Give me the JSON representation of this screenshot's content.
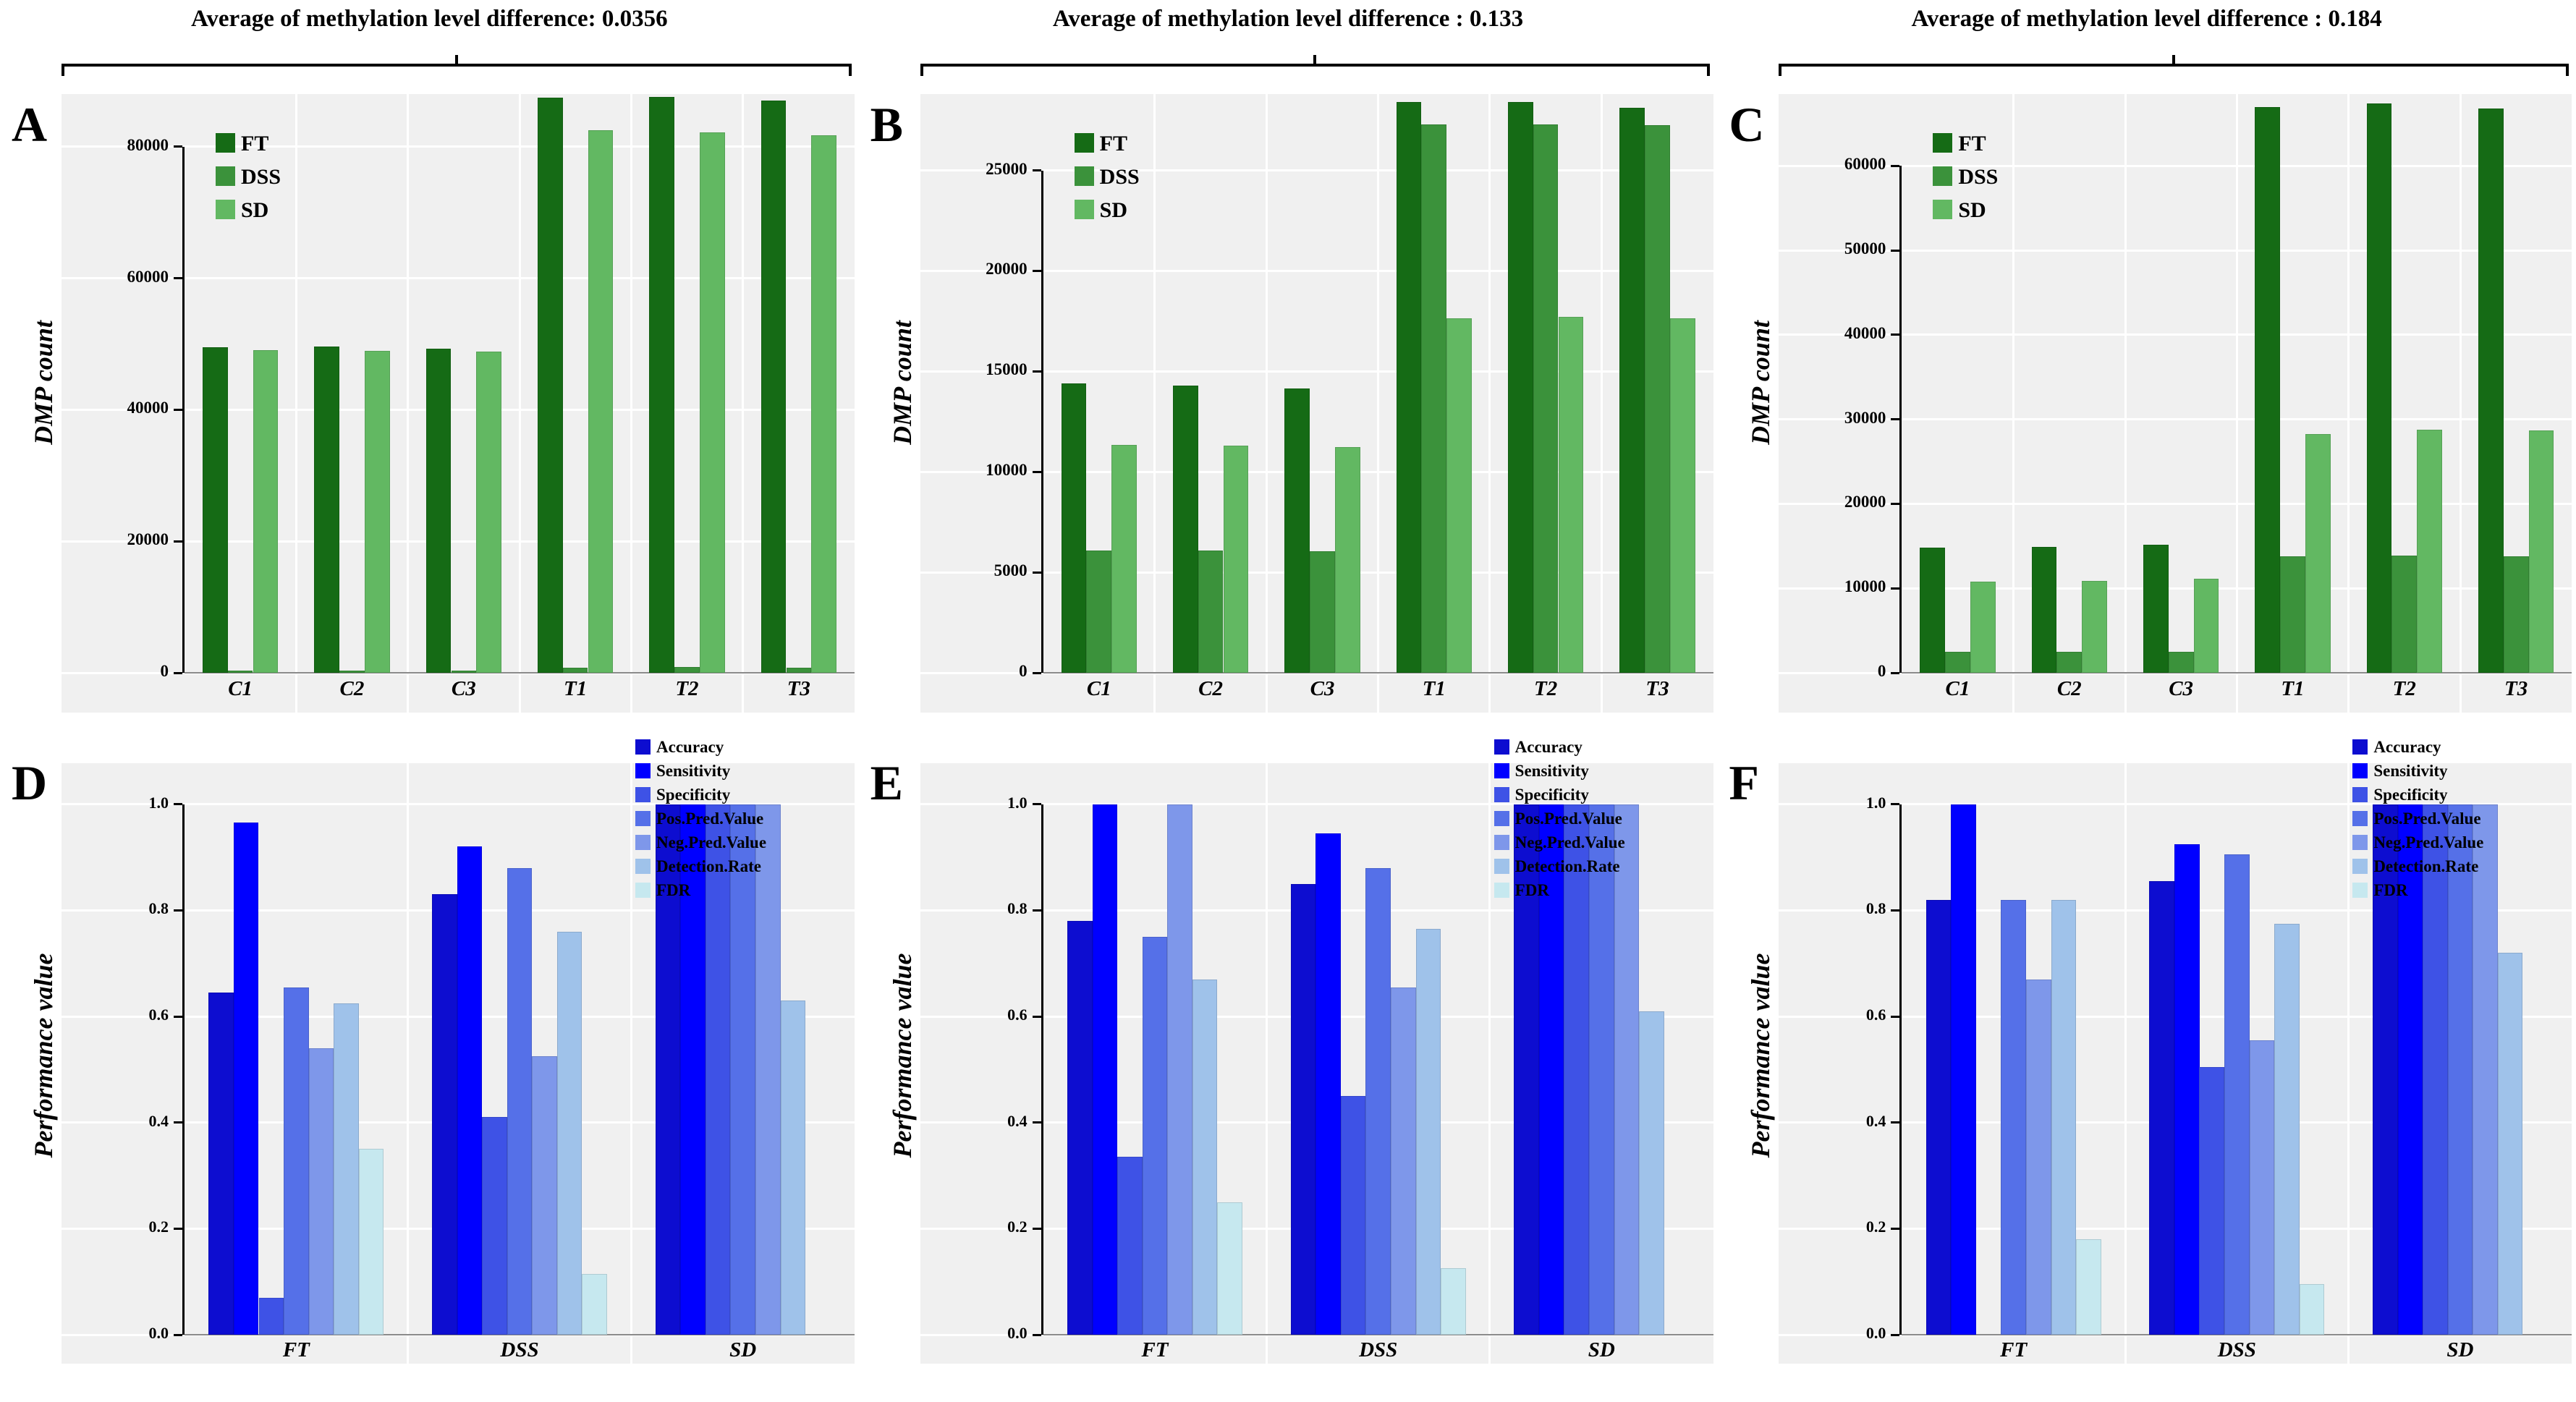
{
  "figure": {
    "description_visible_text_only": true,
    "panel_letters": [
      "A",
      "B",
      "C",
      "D",
      "E",
      "F"
    ]
  },
  "chart_data": [
    {
      "type": "bar",
      "panel_label": "A",
      "title": "Average of methylation level difference: 0.0356",
      "ylabel": "DMP count",
      "xlabel": "",
      "categories": [
        "C1",
        "C2",
        "C3",
        "T1",
        "T2",
        "T3"
      ],
      "series": [
        {
          "name": "FT",
          "color": "#156b15",
          "values": [
            49500,
            49600,
            49300,
            87500,
            87600,
            87000
          ]
        },
        {
          "name": "DSS",
          "color": "#3b923b",
          "values": [
            300,
            300,
            300,
            800,
            900,
            800
          ]
        },
        {
          "name": "SD",
          "color": "#62b862",
          "values": [
            49100,
            49000,
            48900,
            82500,
            82200,
            81700
          ]
        }
      ],
      "ylim": [
        0,
        88000
      ],
      "yticks": [
        {
          "value": 0,
          "label": "0"
        },
        {
          "value": 20000,
          "label": "20000"
        },
        {
          "value": 40000,
          "label": "40000"
        },
        {
          "value": 60000,
          "label": "60000"
        },
        {
          "value": 80000,
          "label": "80000"
        }
      ],
      "grid": "on",
      "legend_position": "inside-top-left"
    },
    {
      "type": "bar",
      "panel_label": "B",
      "title": "Average of methylation level difference : 0.133",
      "ylabel": "DMP count",
      "xlabel": "",
      "categories": [
        "C1",
        "C2",
        "C3",
        "T1",
        "T2",
        "T3"
      ],
      "series": [
        {
          "name": "FT",
          "color": "#156b15",
          "values": [
            14400,
            14300,
            14150,
            28400,
            28400,
            28100
          ]
        },
        {
          "name": "DSS",
          "color": "#3b923b",
          "values": [
            6100,
            6100,
            6050,
            27300,
            27300,
            27250
          ]
        },
        {
          "name": "SD",
          "color": "#62b862",
          "values": [
            11350,
            11300,
            11250,
            17650,
            17700,
            17650
          ]
        }
      ],
      "ylim": [
        0,
        28800
      ],
      "yticks": [
        {
          "value": 0,
          "label": "0"
        },
        {
          "value": 5000,
          "label": "5000"
        },
        {
          "value": 10000,
          "label": "10000"
        },
        {
          "value": 15000,
          "label": "15000"
        },
        {
          "value": 20000,
          "label": "20000"
        },
        {
          "value": 25000,
          "label": "25000"
        }
      ],
      "grid": "on",
      "legend_position": "inside-top-left"
    },
    {
      "type": "bar",
      "panel_label": "C",
      "title": "Average of methylation level difference : 0.184",
      "ylabel": "DMP count",
      "xlabel": "",
      "categories": [
        "C1",
        "C2",
        "C3",
        "T1",
        "T2",
        "T3"
      ],
      "series": [
        {
          "name": "FT",
          "color": "#156b15",
          "values": [
            14800,
            14900,
            15200,
            67000,
            67400,
            66800
          ]
        },
        {
          "name": "DSS",
          "color": "#3b923b",
          "values": [
            2500,
            2500,
            2450,
            13800,
            13900,
            13800
          ]
        },
        {
          "name": "SD",
          "color": "#62b862",
          "values": [
            10800,
            10900,
            11100,
            28300,
            28800,
            28700
          ]
        }
      ],
      "ylim": [
        0,
        68500
      ],
      "yticks": [
        {
          "value": 0,
          "label": "0"
        },
        {
          "value": 10000,
          "label": "10000"
        },
        {
          "value": 20000,
          "label": "20000"
        },
        {
          "value": 30000,
          "label": "30000"
        },
        {
          "value": 40000,
          "label": "40000"
        },
        {
          "value": 50000,
          "label": "50000"
        },
        {
          "value": 60000,
          "label": "60000"
        }
      ],
      "grid": "on",
      "legend_position": "inside-top-left"
    },
    {
      "type": "bar",
      "panel_label": "D",
      "title": "",
      "ylabel": "Performance value",
      "xlabel": "",
      "categories": [
        "FT",
        "DSS",
        "SD"
      ],
      "series": [
        {
          "name": "Accuracy",
          "color": "#0d0dd0",
          "values": [
            0.645,
            0.83,
            1.0
          ]
        },
        {
          "name": "Sensitivity",
          "color": "#0000ff",
          "values": [
            0.965,
            0.92,
            1.0
          ]
        },
        {
          "name": "Specificity",
          "color": "#3e52e6",
          "values": [
            0.07,
            0.41,
            1.0
          ]
        },
        {
          "name": "Pos.Pred.Value",
          "color": "#5570e8",
          "values": [
            0.655,
            0.88,
            1.0
          ]
        },
        {
          "name": "Neg.Pred.Value",
          "color": "#7e97ea",
          "values": [
            0.54,
            0.525,
            1.0
          ]
        },
        {
          "name": "Detection.Rate",
          "color": "#9fc2ea",
          "values": [
            0.625,
            0.76,
            0.63
          ]
        },
        {
          "name": "FDR",
          "color": "#c6e8ef",
          "values": [
            0.35,
            0.115,
            0
          ]
        }
      ],
      "ylim": [
        0,
        1.05
      ],
      "yticks": [
        {
          "value": 0,
          "label": "0.0"
        },
        {
          "value": 0.2,
          "label": "0.2"
        },
        {
          "value": 0.4,
          "label": "0.4"
        },
        {
          "value": 0.6,
          "label": "0.6"
        },
        {
          "value": 0.8,
          "label": "0.8"
        },
        {
          "value": 1.0,
          "label": "1.0"
        }
      ],
      "grid": "on",
      "legend_position": "top-right"
    },
    {
      "type": "bar",
      "panel_label": "E",
      "title": "",
      "ylabel": "Performance value",
      "xlabel": "",
      "categories": [
        "FT",
        "DSS",
        "SD"
      ],
      "series": [
        {
          "name": "Accuracy",
          "color": "#0d0dd0",
          "values": [
            0.78,
            0.85,
            1.0
          ]
        },
        {
          "name": "Sensitivity",
          "color": "#0000ff",
          "values": [
            1.0,
            0.945,
            1.0
          ]
        },
        {
          "name": "Specificity",
          "color": "#3e52e6",
          "values": [
            0.335,
            0.45,
            1.0
          ]
        },
        {
          "name": "Pos.Pred.Value",
          "color": "#5570e8",
          "values": [
            0.75,
            0.88,
            1.0
          ]
        },
        {
          "name": "Neg.Pred.Value",
          "color": "#7e97ea",
          "values": [
            1.0,
            0.655,
            1.0
          ]
        },
        {
          "name": "Detection.Rate",
          "color": "#9fc2ea",
          "values": [
            0.67,
            0.765,
            0.61
          ]
        },
        {
          "name": "FDR",
          "color": "#c6e8ef",
          "values": [
            0.25,
            0.125,
            0
          ]
        }
      ],
      "ylim": [
        0,
        1.05
      ],
      "yticks": [
        {
          "value": 0,
          "label": "0.0"
        },
        {
          "value": 0.2,
          "label": "0.2"
        },
        {
          "value": 0.4,
          "label": "0.4"
        },
        {
          "value": 0.6,
          "label": "0.6"
        },
        {
          "value": 0.8,
          "label": "0.8"
        },
        {
          "value": 1.0,
          "label": "1.0"
        }
      ],
      "grid": "on",
      "legend_position": "top-right"
    },
    {
      "type": "bar",
      "panel_label": "F",
      "title": "",
      "ylabel": "Performance value",
      "xlabel": "",
      "categories": [
        "FT",
        "DSS",
        "SD"
      ],
      "series": [
        {
          "name": "Accuracy",
          "color": "#0d0dd0",
          "values": [
            0.82,
            0.855,
            1.0
          ]
        },
        {
          "name": "Sensitivity",
          "color": "#0000ff",
          "values": [
            1.0,
            0.925,
            1.0
          ]
        },
        {
          "name": "Specificity",
          "color": "#3e52e6",
          "values": [
            0.0,
            0.505,
            1.0
          ]
        },
        {
          "name": "Pos.Pred.Value",
          "color": "#5570e8",
          "values": [
            0.82,
            0.905,
            1.0
          ]
        },
        {
          "name": "Neg.Pred.Value",
          "color": "#7e97ea",
          "values": [
            0.67,
            0.555,
            1.0
          ]
        },
        {
          "name": "Detection.Rate",
          "color": "#9fc2ea",
          "values": [
            0.82,
            0.775,
            0.72
          ]
        },
        {
          "name": "FDR",
          "color": "#c6e8ef",
          "values": [
            0.18,
            0.095,
            0
          ]
        }
      ],
      "ylim": [
        0,
        1.05
      ],
      "yticks": [
        {
          "value": 0,
          "label": "0.0"
        },
        {
          "value": 0.2,
          "label": "0.2"
        },
        {
          "value": 0.4,
          "label": "0.4"
        },
        {
          "value": 0.6,
          "label": "0.6"
        },
        {
          "value": 0.8,
          "label": "0.8"
        },
        {
          "value": 1.0,
          "label": "1.0"
        }
      ],
      "grid": "on",
      "legend_position": "top-right"
    }
  ],
  "colors": {
    "plot_background": "#f0f0f0",
    "gridline": "#ffffff",
    "axis": "#000000",
    "baseline": "#8a8a8a"
  }
}
